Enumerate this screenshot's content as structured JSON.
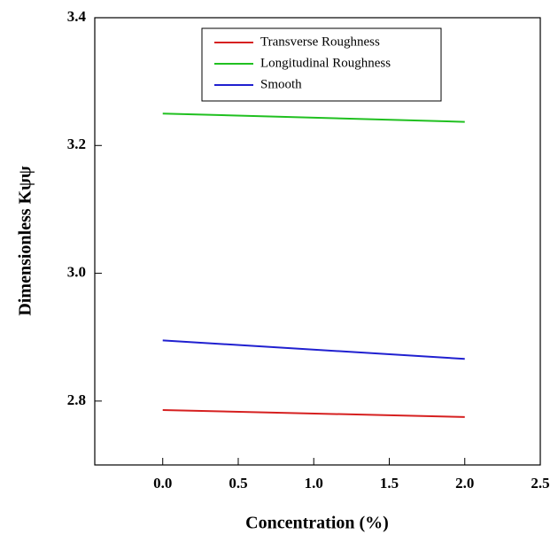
{
  "chart_data": {
    "type": "line",
    "x_label": "Concentration (%)",
    "y_label": "Dimensionless Kψψ",
    "x": [
      0,
      2
    ],
    "series": [
      {
        "name": "Transverse Roughness",
        "color": "#d62020",
        "values": [
          2.786,
          2.775
        ]
      },
      {
        "name": "Longitudinal Roughness",
        "color": "#20c020",
        "values": [
          3.25,
          3.237
        ]
      },
      {
        "name": "Smooth",
        "color": "#2020d0",
        "values": [
          2.895,
          2.866
        ]
      }
    ],
    "xlim": [
      -0.45,
      2.5
    ],
    "xticks": [
      {
        "value": 0,
        "label": "0.0"
      },
      0.5,
      {
        "value": 1,
        "label": "1.0"
      },
      1.5,
      {
        "value": 2,
        "label": "2.0"
      },
      2.5
    ],
    "ylim": [
      2.7,
      3.4
    ],
    "yticks": [
      2.8,
      {
        "value": 3,
        "label": "3.0"
      },
      3.2,
      3.4
    ],
    "legend": "upper center"
  }
}
